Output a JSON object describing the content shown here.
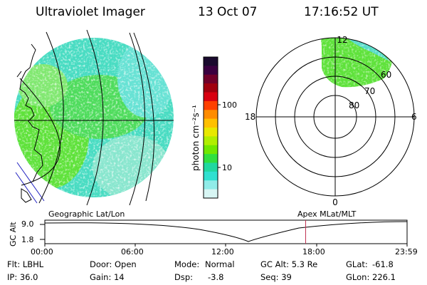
{
  "header": {
    "title": "Ultraviolet Imager",
    "date": "13 Oct 07",
    "time": "17:16:52 UT"
  },
  "colorbar": {
    "label": "photon cm⁻²s⁻¹",
    "ticks": [
      "100",
      "10"
    ],
    "colors": [
      "#1a0a2e",
      "#3a0040",
      "#70002a",
      "#a0000e",
      "#d80010",
      "#ff4000",
      "#ff8c00",
      "#ffc000",
      "#e8e800",
      "#b0ee00",
      "#70e800",
      "#30e040",
      "#20d8a0",
      "#30e0d0",
      "#90ece8",
      "#d8f6f4"
    ]
  },
  "polar_plot": {
    "labels": {
      "noon": "12",
      "midnight": "0",
      "dusk": "18",
      "dawn": "6"
    },
    "latitudes": [
      "60",
      "70",
      "80"
    ]
  },
  "timeline": {
    "left_title": "Geographic Lat/Lon",
    "right_title": "Apex MLat/MLT",
    "axis_label": "GC Alt",
    "y_ticks": [
      "9.0",
      "1.8"
    ],
    "x_ticks": [
      "00:00",
      "06:00",
      "12:00",
      "18:00",
      "23:59"
    ],
    "current_time_hours": 17.28
  },
  "info": {
    "flt": "Flt: LBHL",
    "door": "Door: Open",
    "mode_label": "Mode:",
    "mode_value": "Normal",
    "gc_alt": "GC Alt: 5.3 Re",
    "glat_label": "GLat:",
    "glat_value": "-61.8",
    "ip": "IP: 36.0",
    "gain": "Gain: 14",
    "dsp_label": "Dsp:",
    "dsp_value": "-3.8",
    "seq": "Seq: 39",
    "glon_label": "GLon:",
    "glon_value": "226.1"
  }
}
